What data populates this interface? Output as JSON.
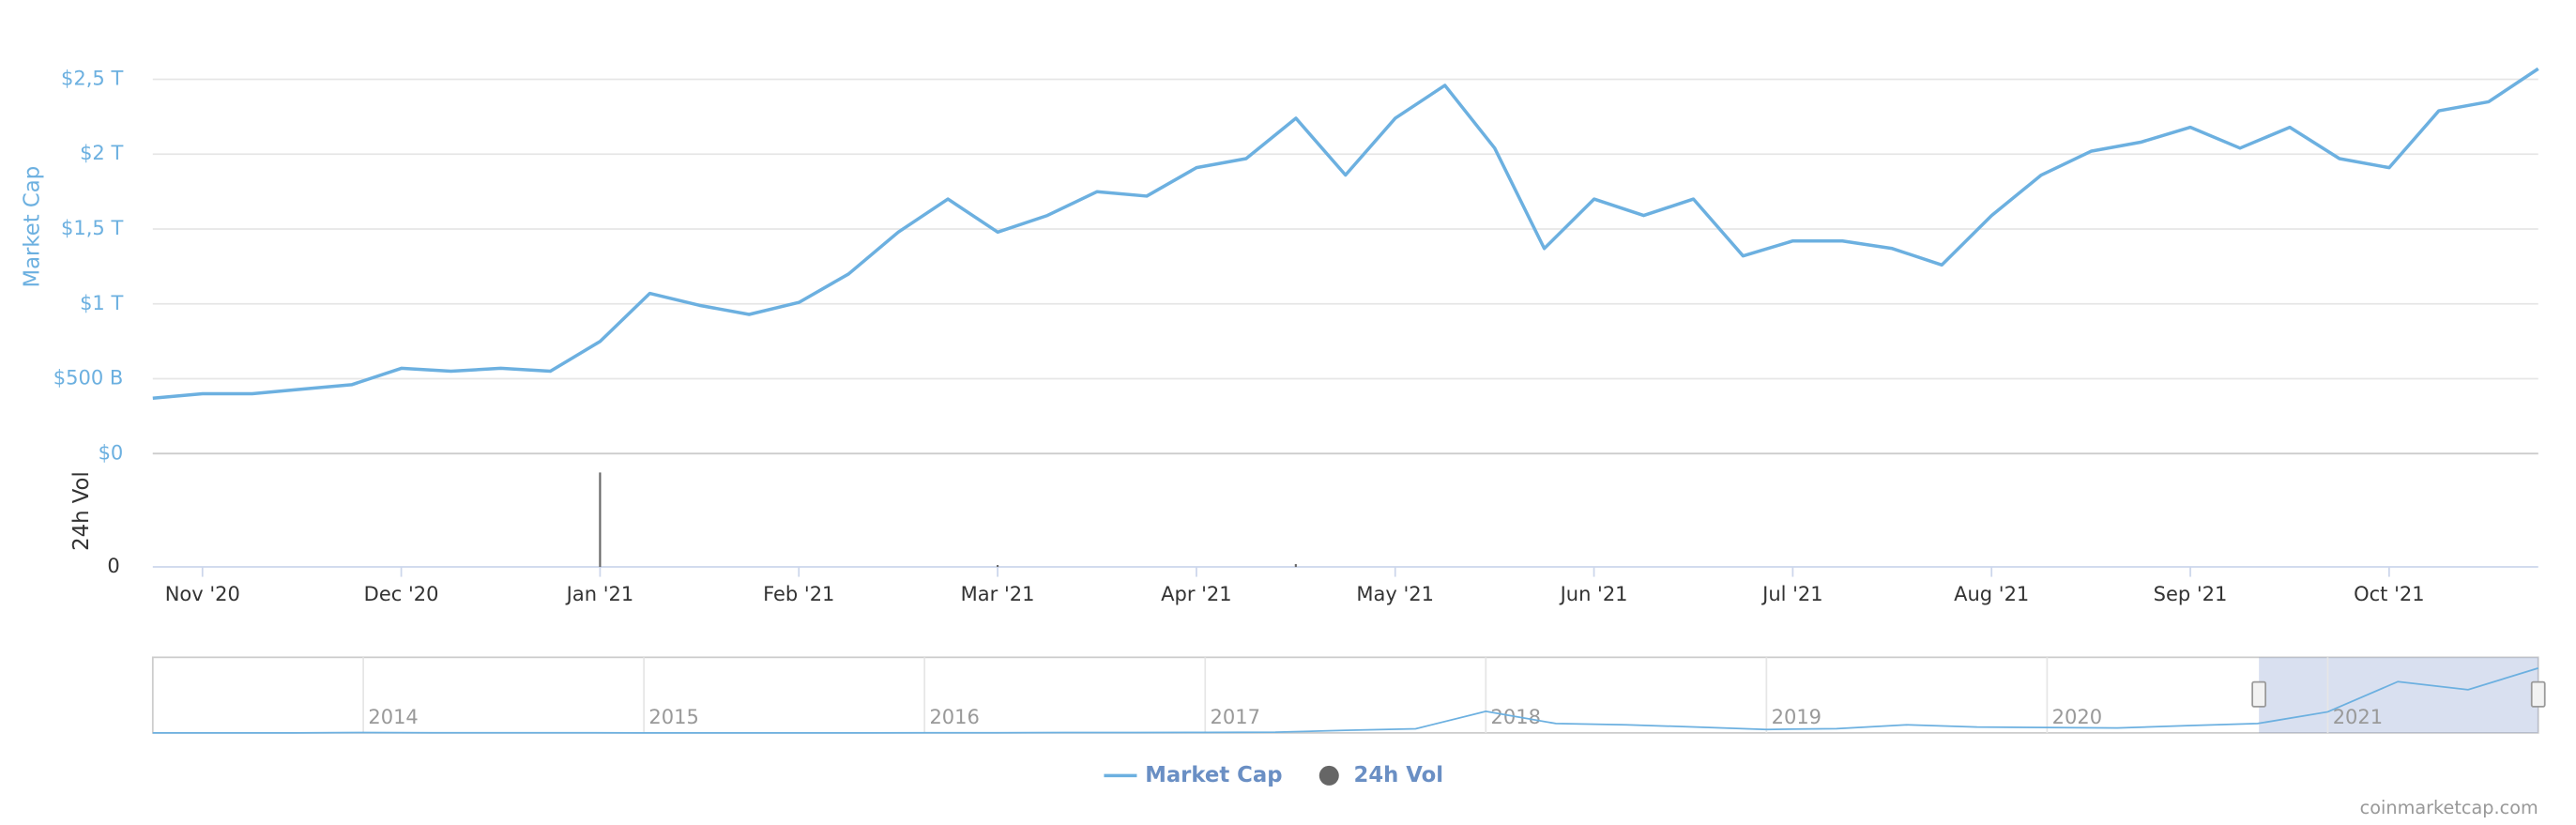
{
  "chart_data": {
    "type": "line",
    "ylabel": "Market Cap",
    "y2label": "24h Vol",
    "categories": [
      null,
      "Nov '20",
      null,
      null,
      null,
      "Dec '20",
      null,
      null,
      null,
      "Jan '21",
      null,
      null,
      null,
      "Feb '21",
      null,
      null,
      null,
      "Mar '21",
      null,
      null,
      null,
      "Apr '21",
      null,
      null,
      null,
      "May '21",
      null,
      null,
      null,
      "Jun '21",
      null,
      null,
      null,
      "Jul '21",
      null,
      null,
      null,
      "Aug '21",
      null,
      null,
      null,
      "Sep '21",
      null,
      null,
      null,
      "Oct '21",
      null,
      null,
      null
    ],
    "series": [
      {
        "name": "Market Cap",
        "color": "#6cb0e0",
        "values": [
          0.37,
          0.4,
          0.4,
          0.43,
          0.46,
          0.57,
          0.55,
          0.57,
          0.55,
          0.75,
          1.07,
          0.99,
          0.93,
          1.01,
          1.2,
          1.48,
          1.7,
          1.48,
          1.59,
          1.75,
          1.72,
          1.91,
          1.97,
          2.24,
          1.86,
          2.24,
          2.46,
          2.04,
          1.37,
          1.7,
          1.59,
          1.7,
          1.32,
          1.42,
          1.42,
          1.37,
          1.26,
          1.59,
          1.86,
          2.02,
          2.08,
          2.18,
          2.04,
          2.18,
          1.97,
          1.91,
          2.29,
          2.35,
          2.57
        ]
      },
      {
        "name": "24h Vol",
        "color": "#666666",
        "axis": "y2",
        "values": [
          0,
          0,
          0,
          0,
          0,
          0,
          0,
          0,
          0,
          1,
          0,
          0,
          0,
          0,
          0,
          0,
          0,
          0.02,
          0,
          0,
          0,
          0,
          0,
          0.03,
          0,
          0,
          0,
          0,
          0,
          0,
          0,
          0,
          0,
          0,
          0,
          0,
          0,
          0,
          0,
          0,
          0,
          0,
          0,
          0,
          0,
          0,
          0,
          0,
          0
        ]
      }
    ],
    "ylim": [
      0,
      2.7
    ],
    "yticks": [
      {
        "value": 0,
        "label": "$0"
      },
      {
        "value": 0.5,
        "label": "$500 B"
      },
      {
        "value": 1,
        "label": "$1 T"
      },
      {
        "value": 1.5,
        "label": "$1,5 T"
      },
      {
        "value": 2,
        "label": "$2 T"
      },
      {
        "value": 2.5,
        "label": "$2,5 T"
      }
    ],
    "y2lim": [
      0,
      1.2
    ],
    "y2ticks": [
      0
    ],
    "grid": true,
    "navigator": {
      "categories": [
        null,
        null,
        null,
        "2014",
        null,
        null,
        null,
        "2015",
        null,
        null,
        null,
        "2016",
        null,
        null,
        null,
        "2017",
        null,
        null,
        null,
        "2018",
        null,
        null,
        null,
        "2019",
        null,
        null,
        null,
        "2020",
        null,
        null,
        null,
        "2021",
        null,
        null,
        null
      ],
      "values": [
        0.001,
        0.001,
        0.002,
        0.01,
        0.006,
        0.008,
        0.006,
        0.003,
        0.003,
        0.003,
        0.003,
        0.007,
        0.007,
        0.01,
        0.01,
        0.018,
        0.025,
        0.1,
        0.15,
        0.8,
        0.35,
        0.3,
        0.22,
        0.13,
        0.16,
        0.3,
        0.22,
        0.2,
        0.18,
        0.27,
        0.35,
        0.78,
        1.9,
        1.6,
        2.4
      ],
      "ylim": [
        0,
        2.8
      ],
      "color": "#6cb0e0"
    },
    "credit": "coinmarketcap.com"
  }
}
